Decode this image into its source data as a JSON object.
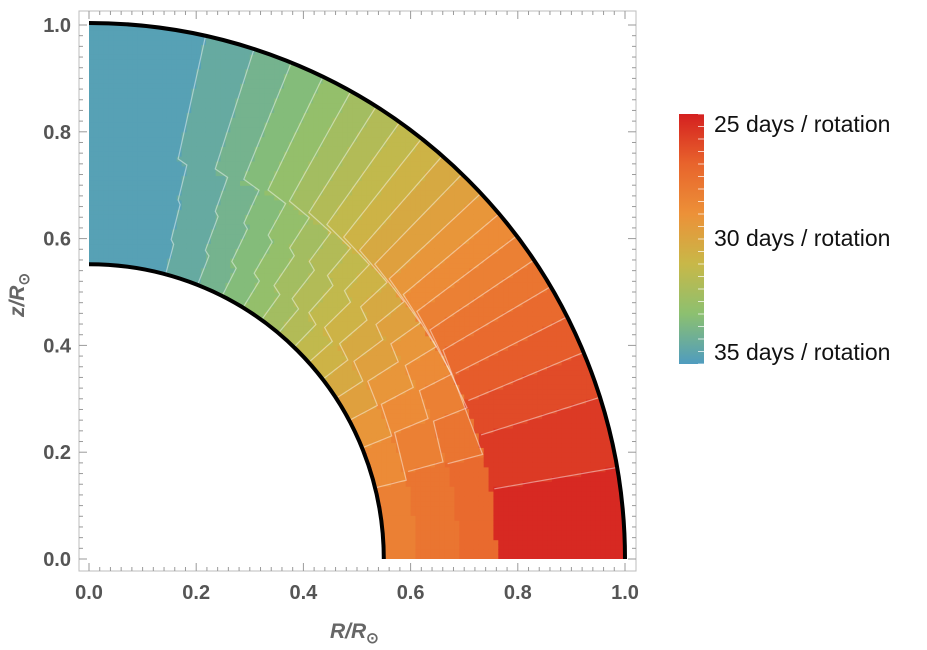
{
  "chart_data": {
    "type": "contour",
    "title": "",
    "xlabel_main": "R/R",
    "xlabel_sub": "⊙",
    "ylabel_main": "z/R",
    "ylabel_sub": "⊙",
    "xlim": [
      0.0,
      1.0
    ],
    "ylim": [
      0.0,
      1.0
    ],
    "x_ticks": [
      "0.0",
      "0.2",
      "0.4",
      "0.6",
      "0.8",
      "1.0"
    ],
    "y_ticks": [
      "0.0",
      "0.2",
      "0.4",
      "0.6",
      "0.8",
      "1.0"
    ],
    "inner_radius": 0.55,
    "outer_radius": 1.0,
    "colorbar": {
      "min_period": 25,
      "max_period": 35,
      "labels": [
        {
          "period": 25,
          "text": "25 days / rotation"
        },
        {
          "period": 30,
          "text": "30 days / rotation"
        },
        {
          "period": 35,
          "text": "35 days / rotation"
        }
      ],
      "colors": [
        "#d42020",
        "#e8642c",
        "#ec9138",
        "#c8b848",
        "#8cc070",
        "#4f9cbf"
      ]
    },
    "equator_period_bands": [
      {
        "r_from": 0.55,
        "r_to": 0.61,
        "period": 28.2
      },
      {
        "r_from": 0.61,
        "r_to": 0.69,
        "period": 27.6
      },
      {
        "r_from": 0.69,
        "r_to": 0.76,
        "period": 27.1
      },
      {
        "r_from": 0.76,
        "r_to": 1.0,
        "period": 25.3
      }
    ],
    "pole_period": 35.0
  }
}
